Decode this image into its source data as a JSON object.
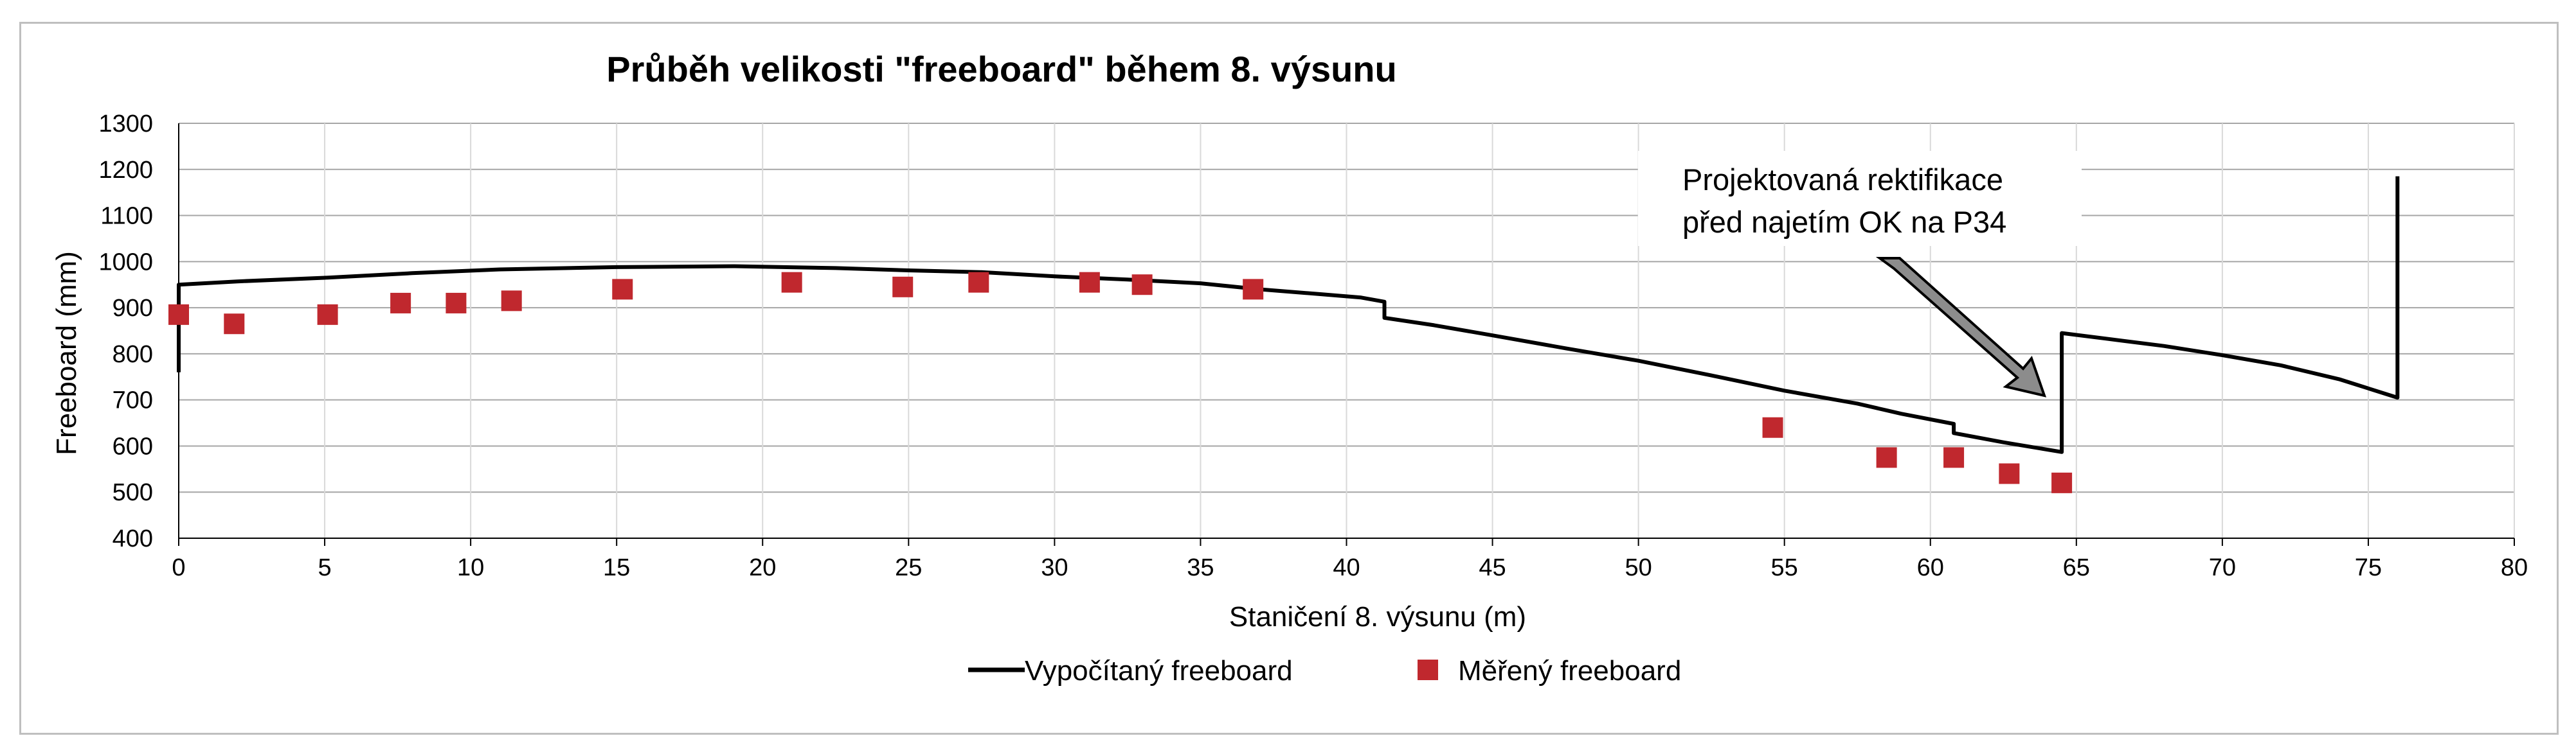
{
  "chart_data": {
    "type": "line",
    "title": "Průběh velikosti \"freeboard\" během 8. výsunu",
    "xlabel": "Staničení 8. výsunu (m)",
    "ylabel": "Freeboard (mm)",
    "xlim": [
      0,
      80
    ],
    "ylim": [
      400,
      1300
    ],
    "xticks": [
      0,
      5,
      10,
      15,
      20,
      25,
      30,
      35,
      40,
      45,
      50,
      55,
      60,
      65,
      70,
      75,
      80
    ],
    "yticks": [
      400,
      500,
      600,
      700,
      800,
      900,
      1000,
      1100,
      1200,
      1300
    ],
    "grid": true,
    "legend_position": "bottom",
    "series": [
      {
        "name": "Vypočítaný freeboard",
        "style": "line",
        "color": "#000000",
        "points": [
          [
            0,
            760
          ],
          [
            0,
            950
          ],
          [
            2,
            957
          ],
          [
            5,
            965
          ],
          [
            8,
            975
          ],
          [
            11,
            983
          ],
          [
            15,
            988
          ],
          [
            19,
            990
          ],
          [
            22.5,
            986
          ],
          [
            25,
            981
          ],
          [
            27.5,
            977
          ],
          [
            30,
            968
          ],
          [
            32.5,
            961
          ],
          [
            35,
            953
          ],
          [
            37,
            940
          ],
          [
            39,
            930
          ],
          [
            40.5,
            922
          ],
          [
            41.3,
            913
          ],
          [
            41.3,
            878
          ],
          [
            43,
            862
          ],
          [
            45,
            840
          ],
          [
            47.5,
            812
          ],
          [
            50,
            785
          ],
          [
            52.5,
            753
          ],
          [
            55,
            720
          ],
          [
            57.5,
            692
          ],
          [
            59,
            670
          ],
          [
            60.8,
            648
          ],
          [
            60.8,
            628
          ],
          [
            62.5,
            608
          ],
          [
            64.5,
            587
          ],
          [
            64.5,
            845
          ],
          [
            66,
            833
          ],
          [
            68,
            817
          ],
          [
            70,
            797
          ],
          [
            72,
            775
          ],
          [
            74,
            745
          ],
          [
            76,
            705
          ],
          [
            76,
            1185
          ]
        ]
      },
      {
        "name": "Měřený freeboard",
        "style": "marker",
        "color": "#c0282e",
        "points": [
          [
            0,
            885
          ],
          [
            1.9,
            865
          ],
          [
            5.1,
            885
          ],
          [
            7.6,
            910
          ],
          [
            9.5,
            910
          ],
          [
            11.4,
            915
          ],
          [
            15.2,
            940
          ],
          [
            21,
            955
          ],
          [
            24.8,
            945
          ],
          [
            27.4,
            955
          ],
          [
            31.2,
            955
          ],
          [
            33,
            950
          ],
          [
            36.8,
            940
          ],
          [
            54.6,
            640
          ],
          [
            58.5,
            575
          ],
          [
            60.8,
            575
          ],
          [
            62.7,
            540
          ],
          [
            64.5,
            520
          ]
        ]
      }
    ],
    "annotation": {
      "lines": [
        "Projektovaná rektifikace",
        "před najetím OK na P34"
      ],
      "arrow_target": [
        64.5,
        700
      ]
    }
  }
}
